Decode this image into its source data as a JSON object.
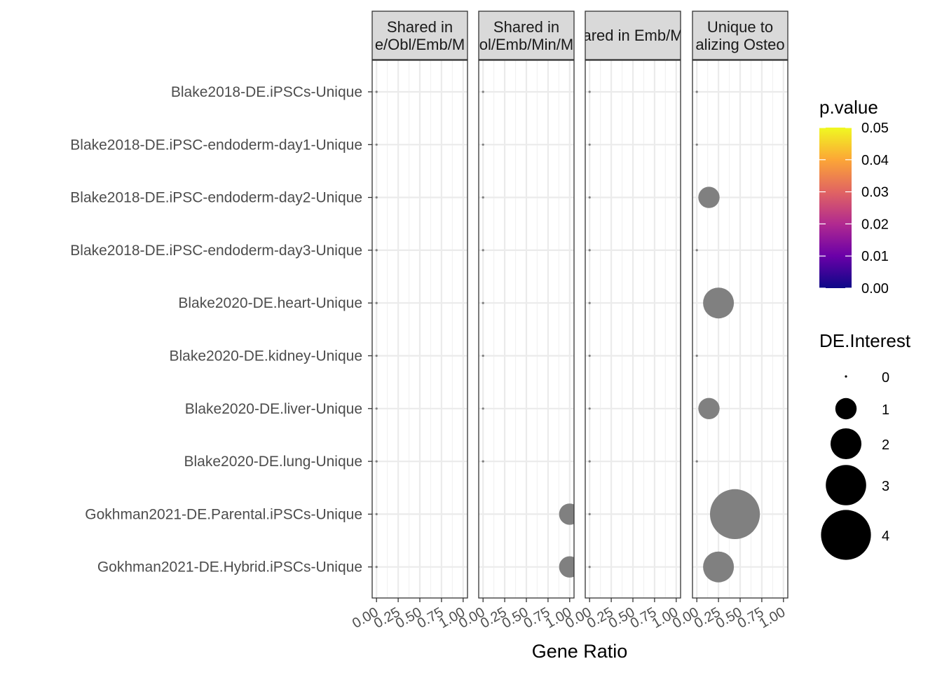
{
  "chart_data": {
    "type": "scatter",
    "xlabel": "Gene Ratio",
    "xlim": [
      0,
      1
    ],
    "x_ticks": [
      "0.00",
      "0.25",
      "0.50",
      "0.75",
      "1.00"
    ],
    "x_tick_values": [
      0,
      0.25,
      0.5,
      0.75,
      1.0
    ],
    "grid": true,
    "legend_position": "right",
    "panels": [
      {
        "strip_line1": "Shared in",
        "strip_line2": "e/Obl/Emb/M"
      },
      {
        "strip_line1": "Shared in",
        "strip_line2": "ol/Emb/Min/M"
      },
      {
        "strip_line1": "ared in Emb/M",
        "strip_line2": ""
      },
      {
        "strip_line1": "Unique to",
        "strip_line2": "alizing Osteo"
      }
    ],
    "categories": [
      "Blake2018-DE.iPSCs-Unique",
      "Blake2018-DE.iPSC-endoderm-day1-Unique",
      "Blake2018-DE.iPSC-endoderm-day2-Unique",
      "Blake2018-DE.iPSC-endoderm-day3-Unique",
      "Blake2020-DE.heart-Unique",
      "Blake2020-DE.kidney-Unique",
      "Blake2020-DE.liver-Unique",
      "Blake2020-DE.lung-Unique",
      "Gokhman2021-DE.Parental.iPSCs-Unique",
      "Gokhman2021-DE.Hybrid.iPSCs-Unique"
    ],
    "points_color": "#808080",
    "points": [
      {
        "panel": 0,
        "category": 0,
        "x": 0.0,
        "de_interest": 0
      },
      {
        "panel": 0,
        "category": 1,
        "x": 0.0,
        "de_interest": 0
      },
      {
        "panel": 0,
        "category": 2,
        "x": 0.0,
        "de_interest": 0
      },
      {
        "panel": 0,
        "category": 3,
        "x": 0.0,
        "de_interest": 0
      },
      {
        "panel": 0,
        "category": 4,
        "x": 0.0,
        "de_interest": 0
      },
      {
        "panel": 0,
        "category": 5,
        "x": 0.0,
        "de_interest": 0
      },
      {
        "panel": 0,
        "category": 6,
        "x": 0.0,
        "de_interest": 0
      },
      {
        "panel": 0,
        "category": 7,
        "x": 0.0,
        "de_interest": 0
      },
      {
        "panel": 0,
        "category": 8,
        "x": 0.0,
        "de_interest": 0
      },
      {
        "panel": 0,
        "category": 9,
        "x": 0.0,
        "de_interest": 0
      },
      {
        "panel": 1,
        "category": 0,
        "x": 0.0,
        "de_interest": 0
      },
      {
        "panel": 1,
        "category": 1,
        "x": 0.0,
        "de_interest": 0
      },
      {
        "panel": 1,
        "category": 2,
        "x": 0.0,
        "de_interest": 0
      },
      {
        "panel": 1,
        "category": 3,
        "x": 0.0,
        "de_interest": 0
      },
      {
        "panel": 1,
        "category": 4,
        "x": 0.0,
        "de_interest": 0
      },
      {
        "panel": 1,
        "category": 5,
        "x": 0.0,
        "de_interest": 0
      },
      {
        "panel": 1,
        "category": 6,
        "x": 0.0,
        "de_interest": 0
      },
      {
        "panel": 1,
        "category": 7,
        "x": 0.0,
        "de_interest": 0
      },
      {
        "panel": 1,
        "category": 8,
        "x": 1.0,
        "de_interest": 1
      },
      {
        "panel": 1,
        "category": 9,
        "x": 1.0,
        "de_interest": 1
      },
      {
        "panel": 2,
        "category": 0,
        "x": 0.0,
        "de_interest": 0
      },
      {
        "panel": 2,
        "category": 1,
        "x": 0.0,
        "de_interest": 0
      },
      {
        "panel": 2,
        "category": 2,
        "x": 0.0,
        "de_interest": 0
      },
      {
        "panel": 2,
        "category": 3,
        "x": 0.0,
        "de_interest": 0
      },
      {
        "panel": 2,
        "category": 4,
        "x": 0.0,
        "de_interest": 0
      },
      {
        "panel": 2,
        "category": 5,
        "x": 0.0,
        "de_interest": 0
      },
      {
        "panel": 2,
        "category": 6,
        "x": 0.0,
        "de_interest": 0
      },
      {
        "panel": 2,
        "category": 7,
        "x": 0.0,
        "de_interest": 0
      },
      {
        "panel": 2,
        "category": 8,
        "x": 0.0,
        "de_interest": 0
      },
      {
        "panel": 2,
        "category": 9,
        "x": 0.0,
        "de_interest": 0
      },
      {
        "panel": 3,
        "category": 0,
        "x": 0.0,
        "de_interest": 0
      },
      {
        "panel": 3,
        "category": 1,
        "x": 0.0,
        "de_interest": 0
      },
      {
        "panel": 3,
        "category": 2,
        "x": 0.14,
        "de_interest": 1
      },
      {
        "panel": 3,
        "category": 3,
        "x": 0.0,
        "de_interest": 0
      },
      {
        "panel": 3,
        "category": 4,
        "x": 0.25,
        "de_interest": 2
      },
      {
        "panel": 3,
        "category": 5,
        "x": 0.0,
        "de_interest": 0
      },
      {
        "panel": 3,
        "category": 6,
        "x": 0.14,
        "de_interest": 1
      },
      {
        "panel": 3,
        "category": 7,
        "x": 0.0,
        "de_interest": 0
      },
      {
        "panel": 3,
        "category": 8,
        "x": 0.44,
        "de_interest": 4
      },
      {
        "panel": 3,
        "category": 9,
        "x": 0.25,
        "de_interest": 2
      }
    ],
    "legend_color": {
      "title": "p.value",
      "ticks": [
        "0.05",
        "0.04",
        "0.03",
        "0.02",
        "0.01",
        "0.00"
      ],
      "tick_values": [
        0.05,
        0.04,
        0.03,
        0.02,
        0.01,
        0.0
      ],
      "colors": [
        "#0d0887",
        "#6a00a8",
        "#b12a90",
        "#e16462",
        "#fca636",
        "#f0f921"
      ]
    },
    "legend_size": {
      "title": "DE.Interest",
      "labels": [
        "0",
        "1",
        "2",
        "3",
        "4"
      ],
      "values": [
        0,
        1,
        2,
        3,
        4
      ]
    }
  }
}
